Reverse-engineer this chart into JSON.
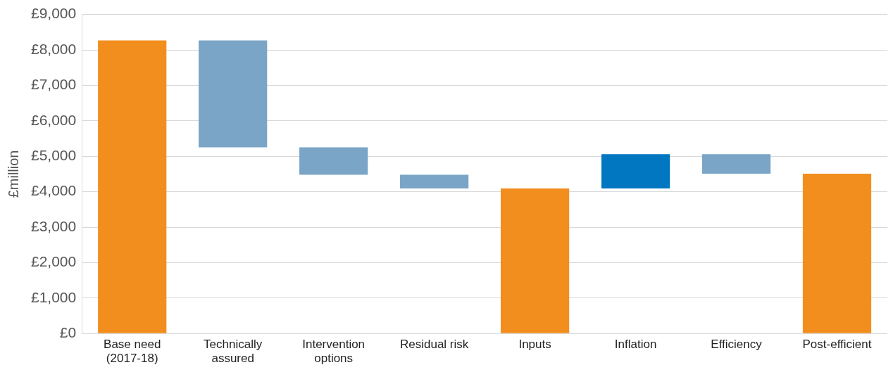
{
  "chart_data": {
    "type": "bar",
    "ylabel": "£million",
    "categories": [
      "Base need (2017-18)",
      "Technically assured",
      "Intervention options",
      "Residual risk",
      "Inputs",
      "Inflation",
      "Efficiency",
      "Post-efficient"
    ],
    "values": [
      8270,
      -3020,
      -770,
      -390,
      4090,
      970,
      -550,
      4510
    ],
    "base": [
      0,
      8270,
      5250,
      4480,
      0,
      4090,
      5060,
      0
    ],
    "colors": [
      "#f28e1e",
      "#7aa5c7",
      "#7aa5c7",
      "#7aa5c7",
      "#f28e1e",
      "#0077c0",
      "#7aa5c7",
      "#f28e1e"
    ],
    "ylim": [
      0,
      9000
    ],
    "yticks": [
      {
        "value": 0,
        "label": "£0"
      },
      {
        "value": 1000,
        "label": "£1,000"
      },
      {
        "value": 2000,
        "label": "£2,000"
      },
      {
        "value": 3000,
        "label": "£3,000"
      },
      {
        "value": 4000,
        "label": "£4,000"
      },
      {
        "value": 5000,
        "label": "£5,000"
      },
      {
        "value": 6000,
        "label": "£6,000"
      },
      {
        "value": 7000,
        "label": "£7,000"
      },
      {
        "value": 8000,
        "label": "£8,000"
      },
      {
        "value": 9000,
        "label": "£9,000"
      }
    ],
    "grid": "y",
    "legend": false
  }
}
